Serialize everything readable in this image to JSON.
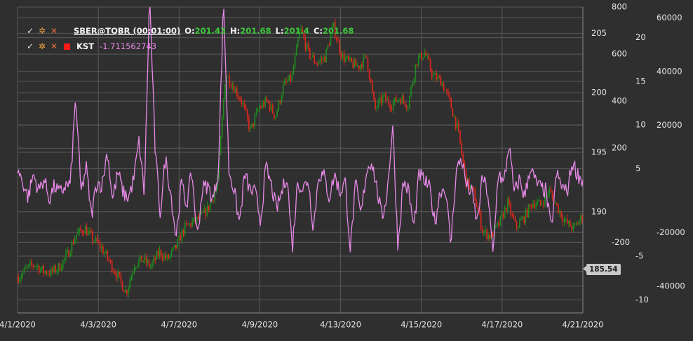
{
  "legend": {
    "symbol": "SBER@TQBR (00:01:00)",
    "o_label": "O:",
    "o_value": "201.43",
    "h_label": "H:",
    "h_value": "201.68",
    "l_label": "L:",
    "l_value": "201.4",
    "c_label": "C:",
    "c_value": "201.68",
    "kst_label": "KST",
    "kst_value": "-1.711562743",
    "icons": [
      "check-icon",
      "gear-icon",
      "close-icon",
      "color-square-icon"
    ]
  },
  "price_badge": "185.54",
  "colors": {
    "background": "#2f2f2f",
    "grid": "#5a5a5a",
    "up_candle": "#1f8a1f",
    "down_candle": "#d8281e",
    "kst_line": "#e889e8",
    "ohlc_value": "#3ec83e"
  },
  "chart_data": {
    "type": "line",
    "x_ticks": [
      "4/1/2020",
      "4/3/2020",
      "4/7/2020",
      "4/9/2020",
      "4/13/2020",
      "4/15/2020",
      "4/17/2020",
      "4/21/2020"
    ],
    "axes": {
      "price": {
        "ticks": [
          185,
          190,
          195,
          200,
          205
        ],
        "range": [
          181.5,
          207.2
        ]
      },
      "kst_left": {
        "ticks": [
          -200,
          200,
          400,
          600,
          800
        ],
        "range": [
          -500,
          800
        ]
      },
      "kst_right": {
        "ticks": [
          -10,
          -5,
          5,
          10,
          15,
          20
        ],
        "range": [
          -11.5,
          23.5
        ]
      },
      "volume": {
        "ticks": [
          -40000,
          -20000,
          20000,
          40000,
          60000
        ],
        "range": [
          -50000,
          64000
        ]
      }
    },
    "grid": true,
    "series": [
      {
        "kind": "candlestick",
        "price_path": [
          184.5,
          185.2,
          185.6,
          185.0,
          184.9,
          185.4,
          186.5,
          188.1,
          188.6,
          187.7,
          187.0,
          185.8,
          184.6,
          183.2,
          185.6,
          186.0,
          185.4,
          186.6,
          186.0,
          187.0,
          188.6,
          189.1,
          189.5,
          190.4,
          192.3,
          201.6,
          200.5,
          199.2,
          196.8,
          198.7,
          199.3,
          198.0,
          200.6,
          201.3,
          205.4,
          203.3,
          202.5,
          203.0,
          205.6,
          203.1,
          202.5,
          202.2,
          203.0,
          198.6,
          199.6,
          199.0,
          199.6,
          199.0,
          202.6,
          203.4,
          201.4,
          201.0,
          199.3,
          196.9,
          192.6,
          191.4,
          188.4,
          187.9,
          189.0,
          190.7,
          188.7,
          189.5,
          190.8,
          190.6,
          191.8,
          190.4,
          189.1,
          188.6,
          189.6
        ]
      },
      {
        "name": "KST",
        "kind": "line",
        "values_path": [
          110,
          55,
          -10,
          90,
          20,
          70,
          -15,
          40,
          5,
          40,
          45,
          420,
          10,
          120,
          -90,
          60,
          40,
          190,
          -20,
          100,
          10,
          -10,
          70,
          230,
          0,
          860,
          210,
          -80,
          160,
          10,
          -180,
          50,
          -40,
          100,
          -180,
          30,
          40,
          -20,
          100,
          830,
          110,
          20,
          -120,
          90,
          20,
          10,
          -110,
          120,
          45,
          -60,
          10,
          90,
          -230,
          60,
          25,
          70,
          -140,
          90,
          80,
          -10,
          90,
          10,
          60,
          -230,
          50,
          -90,
          100,
          150,
          30,
          -100,
          20,
          300,
          -220,
          60,
          20,
          -140,
          90,
          60,
          30,
          -120,
          20,
          30,
          -210,
          100,
          160,
          40,
          10,
          -120,
          80,
          10,
          -260,
          110,
          40,
          220,
          5,
          70,
          -10,
          120,
          60,
          30,
          20,
          -150,
          90,
          40,
          10,
          140,
          90,
          60
        ]
      }
    ]
  }
}
